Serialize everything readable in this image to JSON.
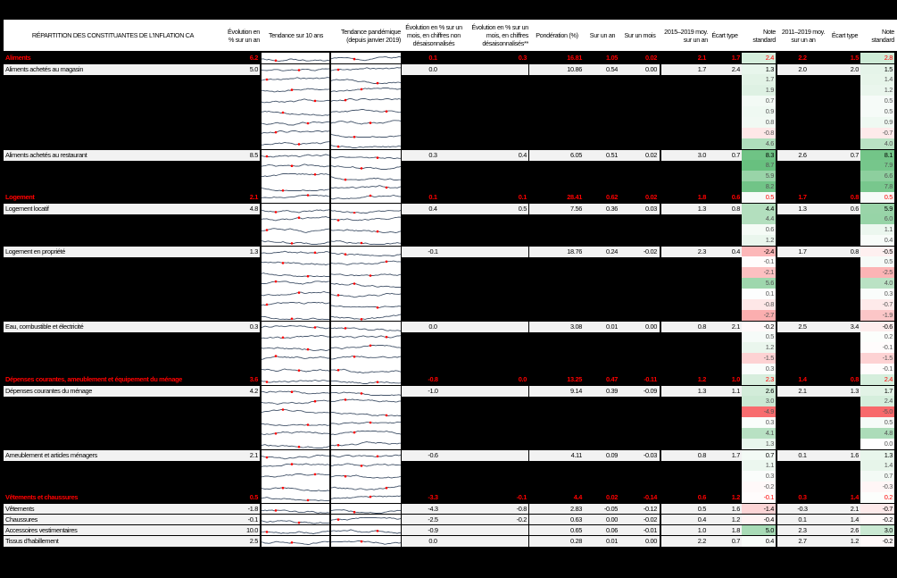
{
  "header": {
    "title": "RÉPARTITION DES CONSTITUANTES DE L'INFLATION CA",
    "yoy": "Évolution en % sur un an",
    "trend10": "Tendance sur 10 ans",
    "trendPandemic": "Tendance pandémique (depuis janvier 2019)",
    "momNSA": "Évolution en % sur un mois, en chiffres non désaisonnalisés",
    "momSA": "Évolution en % sur un mois, en chiffres désaisonnalisés**",
    "weight": "Pondération (%)",
    "contribYoY": "Sur un an",
    "contribMoM": "Sur un mois",
    "avg1519": "2015–2019 moy. sur un an",
    "sd1519": "Écart type",
    "z1519": "Note standard",
    "avg1119": "2011–2019 moy. sur un an",
    "sd1119": "Écart type",
    "z1119": "Note standard"
  },
  "colors": {
    "category_text": "#ff0000",
    "sub_bg": "#f2f2f2",
    "hidden_bg": "#000000",
    "spark_line": "#44546a",
    "spark_low": "#ff0000",
    "spark_high": "#bfbfbf"
  },
  "rows": [
    {
      "type": "cat",
      "label": "Aliments",
      "yoy": "6.2",
      "momNSA": "0.1",
      "momSA": "0.3",
      "weight": "16.81",
      "cYoY": "1.05",
      "cMoM": "0.02",
      "a1": "2.1",
      "s1": "1.7",
      "z1": "2.4",
      "a2": "2.2",
      "s2": "1.5",
      "z2": "2.8"
    },
    {
      "type": "sub",
      "label": "Aliments achetés au magasin",
      "yoy": "5.0",
      "momNSA": "0.0",
      "momSA": "",
      "weight": "10.86",
      "cYoY": "0.54",
      "cMoM": "0.00",
      "a1": "1.7",
      "s1": "2.4",
      "z1": "1.3",
      "a2": "2.0",
      "s2": "2.0",
      "z2": "1.5"
    },
    {
      "type": "hid",
      "z1": "1.7",
      "z2": "1.4"
    },
    {
      "type": "hid",
      "z1": "1.9",
      "z2": "1.2"
    },
    {
      "type": "hid",
      "z1": "0.7",
      "z2": "0.5"
    },
    {
      "type": "hid",
      "z1": "0.9",
      "z2": "0.5"
    },
    {
      "type": "hid",
      "z1": "0.8",
      "z2": "0.9"
    },
    {
      "type": "hid",
      "z1": "-0.8",
      "z2": "-0.7"
    },
    {
      "type": "hid",
      "z1": "4.6",
      "z2": "4.0"
    },
    {
      "type": "sub",
      "label": "Aliments achetés au restaurant",
      "yoy": "8.5",
      "momNSA": "0.3",
      "momSA": "0.4",
      "weight": "6.05",
      "cYoY": "0.51",
      "cMoM": "0.02",
      "a1": "3.0",
      "s1": "0.7",
      "z1": "8.3",
      "a2": "2.6",
      "s2": "0.7",
      "z2": "8.1"
    },
    {
      "type": "hid",
      "z1": "8.7",
      "z2": "7.9"
    },
    {
      "type": "hid",
      "z1": "5.9",
      "z2": "6.6"
    },
    {
      "type": "hid",
      "z1": "8.2",
      "z2": "7.8"
    },
    {
      "type": "cat",
      "label": "Logement",
      "yoy": "2.1",
      "momNSA": "0.1",
      "momSA": "0.1",
      "weight": "28.41",
      "cYoY": "0.62",
      "cMoM": "0.02",
      "a1": "1.8",
      "s1": "0.6",
      "z1": "0.5",
      "a2": "1.7",
      "s2": "0.8",
      "z2": "0.5"
    },
    {
      "type": "sub",
      "label": "Logement locatif",
      "yoy": "4.8",
      "momNSA": "0.4",
      "momSA": "0.5",
      "weight": "7.56",
      "cYoY": "0.36",
      "cMoM": "0.03",
      "a1": "1.3",
      "s1": "0.8",
      "z1": "4.4",
      "a2": "1.3",
      "s2": "0.6",
      "z2": "5.9"
    },
    {
      "type": "hid",
      "z1": "4.4",
      "z2": "6.0"
    },
    {
      "type": "hid",
      "z1": "0.6",
      "z2": "1.1"
    },
    {
      "type": "hid",
      "z1": "1.2",
      "z2": "0.4"
    },
    {
      "type": "sub",
      "label": "Logement en propriété",
      "yoy": "1.3",
      "momNSA": "-0.1",
      "momSA": "",
      "weight": "18.76",
      "cYoY": "0.24",
      "cMoM": "-0.02",
      "a1": "2.3",
      "s1": "0.4",
      "z1": "-2.4",
      "a2": "1.7",
      "s2": "0.8",
      "z2": "-0.5"
    },
    {
      "type": "hid",
      "z1": "-0.1",
      "z2": "0.5"
    },
    {
      "type": "hid",
      "z1": "-2.1",
      "z2": "-2.5"
    },
    {
      "type": "hid",
      "z1": "5.6",
      "z2": "4.0"
    },
    {
      "type": "hid",
      "z1": "0.1",
      "z2": "0.3"
    },
    {
      "type": "hid",
      "z1": "-0.8",
      "z2": "-0.7"
    },
    {
      "type": "hid",
      "z1": "-2.7",
      "z2": "-1.9"
    },
    {
      "type": "sub",
      "label": "Eau, combustible et électricité",
      "yoy": "0.3",
      "momNSA": "0.0",
      "momSA": "",
      "weight": "3.08",
      "cYoY": "0.01",
      "cMoM": "0.00",
      "a1": "0.8",
      "s1": "2.1",
      "z1": "-0.2",
      "a2": "2.5",
      "s2": "3.4",
      "z2": "-0.6"
    },
    {
      "type": "hid",
      "z1": "0.5",
      "z2": "0.2"
    },
    {
      "type": "hid",
      "z1": "1.2",
      "z2": "-0.1"
    },
    {
      "type": "hid",
      "z1": "-1.5",
      "z2": "-1.5"
    },
    {
      "type": "hid",
      "z1": "0.3",
      "z2": "-0.1"
    },
    {
      "type": "cat",
      "label": "Dépenses courantes, ameublement et équipement du ménage",
      "yoy": "3.6",
      "momNSA": "-0.8",
      "momSA": "0.0",
      "weight": "13.25",
      "cYoY": "0.47",
      "cMoM": "-0.11",
      "a1": "1.2",
      "s1": "1.0",
      "z1": "2.3",
      "a2": "1.4",
      "s2": "0.8",
      "z2": "2.4"
    },
    {
      "type": "sub",
      "label": "Dépenses courantes du ménage",
      "yoy": "4.2",
      "momNSA": "-1.0",
      "momSA": "",
      "weight": "9.14",
      "cYoY": "0.39",
      "cMoM": "-0.09",
      "a1": "1.3",
      "s1": "1.1",
      "z1": "2.6",
      "a2": "2.1",
      "s2": "1.3",
      "z2": "1.7"
    },
    {
      "type": "hid",
      "z1": "3.0",
      "z2": "2.4"
    },
    {
      "type": "hid",
      "z1": "-4.9",
      "z2": "-5.0"
    },
    {
      "type": "hid",
      "z1": "0.3",
      "z2": "0.5"
    },
    {
      "type": "hid",
      "z1": "4.1",
      "z2": "4.8"
    },
    {
      "type": "hid",
      "z1": "1.3",
      "z2": "0.0"
    },
    {
      "type": "sub",
      "label": "Ameublement et articles ménagers",
      "yoy": "2.1",
      "momNSA": "-0.6",
      "momSA": "",
      "weight": "4.11",
      "cYoY": "0.09",
      "cMoM": "-0.03",
      "a1": "0.8",
      "s1": "1.7",
      "z1": "0.7",
      "a2": "0.1",
      "s2": "1.6",
      "z2": "1.3"
    },
    {
      "type": "hid",
      "z1": "1.1",
      "z2": "1.4"
    },
    {
      "type": "hid",
      "z1": "0.3",
      "z2": "0.7"
    },
    {
      "type": "hid",
      "z1": "-0.2",
      "z2": "-0.3"
    },
    {
      "type": "cat",
      "label": "Vêtements et chaussures",
      "yoy": "0.5",
      "momNSA": "-3.3",
      "momSA": "-0.1",
      "weight": "4.4",
      "cYoY": "0.02",
      "cMoM": "-0.14",
      "a1": "0.6",
      "s1": "1.2",
      "z1": "-0.1",
      "a2": "0.3",
      "s2": "1.4",
      "z2": "0.2"
    },
    {
      "type": "sub",
      "label": "Vêtements",
      "yoy": "-1.8",
      "momNSA": "-4.3",
      "momSA": "-0.8",
      "weight": "2.83",
      "cYoY": "-0.05",
      "cMoM": "-0.12",
      "a1": "0.5",
      "s1": "1.6",
      "z1": "-1.4",
      "a2": "-0.3",
      "s2": "2.1",
      "z2": "-0.7"
    },
    {
      "type": "sub",
      "label": "Chaussures",
      "yoy": "-0.1",
      "momNSA": "-2.5",
      "momSA": "-0.2",
      "weight": "0.63",
      "cYoY": "0.00",
      "cMoM": "-0.02",
      "a1": "0.4",
      "s1": "1.2",
      "z1": "-0.4",
      "a2": "0.1",
      "s2": "1.4",
      "z2": "-0.2"
    },
    {
      "type": "sub",
      "label": "Accessoires vestimentaires",
      "yoy": "10.0",
      "momNSA": "-0.9",
      "momSA": "",
      "weight": "0.65",
      "cYoY": "0.06",
      "cMoM": "-0.01",
      "a1": "1.0",
      "s1": "1.8",
      "z1": "5.0",
      "a2": "2.3",
      "s2": "2.6",
      "z2": "3.0"
    },
    {
      "type": "sub",
      "label": "Tissus d'habillement",
      "yoy": "2.5",
      "momNSA": "0.0",
      "momSA": "",
      "weight": "0.28",
      "cYoY": "0.01",
      "cMoM": "0.00",
      "a1": "2.2",
      "s1": "0.7",
      "z1": "0.4",
      "a2": "2.7",
      "s2": "1.2",
      "z2": "-0.2"
    }
  ]
}
